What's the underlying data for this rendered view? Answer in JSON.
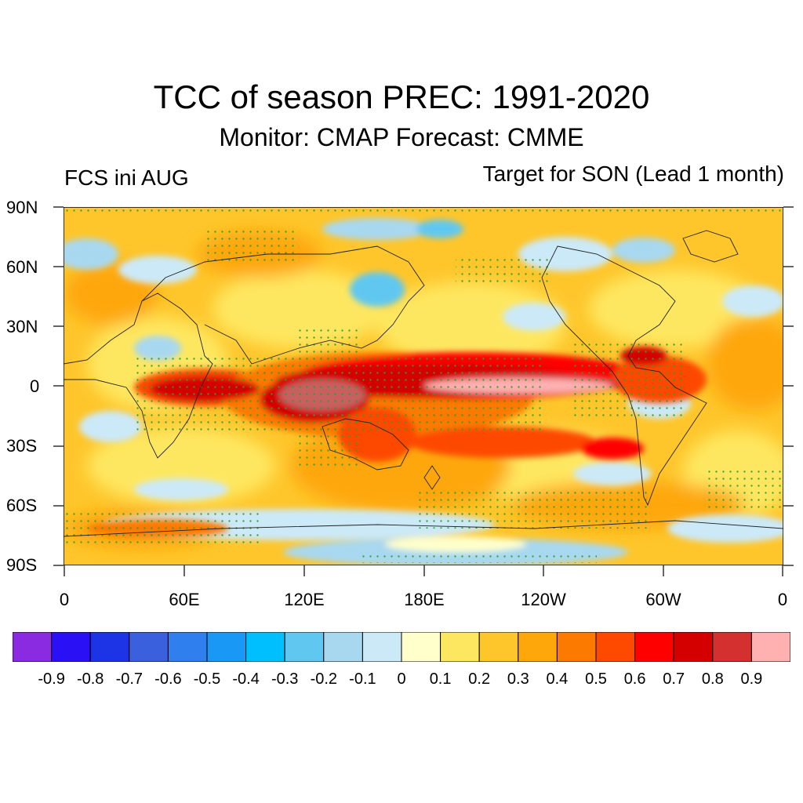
{
  "title": "TCC of season PREC: 1991-2020",
  "subtitle": "Monitor: CMAP   Forecast: CMME",
  "left_label": "FCS ini AUG",
  "right_label": "Target for SON (Lead 1 month)",
  "lat_ticks": [
    "90N",
    "60N",
    "30N",
    "0",
    "30S",
    "60S",
    "90S"
  ],
  "lon_ticks": [
    "0",
    "60E",
    "120E",
    "180E",
    "120W",
    "60W",
    "0"
  ],
  "colorbar": {
    "colors": [
      "#8a2be2",
      "#2a10f5",
      "#1d33e6",
      "#3a60dd",
      "#2f7fef",
      "#1a98f5",
      "#00bfff",
      "#60c8f0",
      "#a8d8f0",
      "#cce9f8",
      "#ffffcc",
      "#fee760",
      "#fec62b",
      "#fea70a",
      "#fd7a00",
      "#fd4a00",
      "#ff0000",
      "#d40000",
      "#d53030",
      "#ffb0b0"
    ],
    "labels": [
      "-0.9",
      "-0.8",
      "-0.7",
      "-0.6",
      "-0.5",
      "-0.4",
      "-0.3",
      "-0.2",
      "-0.1",
      "0",
      "0.1",
      "0.2",
      "0.3",
      "0.4",
      "0.5",
      "0.6",
      "0.7",
      "0.8",
      "0.9"
    ]
  }
}
